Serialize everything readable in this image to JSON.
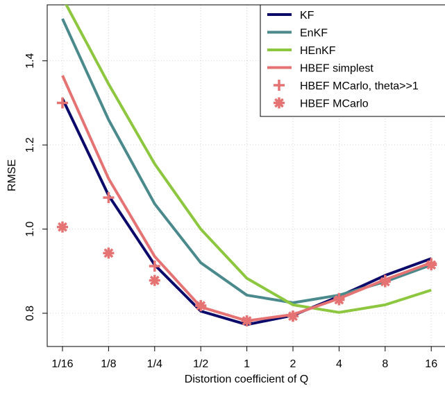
{
  "chart_data": {
    "type": "line",
    "x_label": "Distortion coefficient of Q",
    "y_label": "RMSE",
    "categories": [
      "1/16",
      "1/8",
      "1/4",
      "1/2",
      "1",
      "2",
      "4",
      "8",
      "16"
    ],
    "ylim": [
      0.721,
      1.533
    ],
    "yticks": [
      0.8,
      {
        "value": 1.0,
        "label": "1.0"
      },
      1.2,
      1.4
    ],
    "grid": true,
    "legend": "top right",
    "series": [
      {
        "name": "KF",
        "color": "#0b0a6b",
        "style": "line",
        "values": [
          1.31,
          1.08,
          0.915,
          0.805,
          0.773,
          0.795,
          0.84,
          0.89,
          0.93
        ]
      },
      {
        "name": "EnKF",
        "color": "#4b8a8c",
        "style": "line",
        "values": [
          1.5,
          1.26,
          1.06,
          0.92,
          0.843,
          0.825,
          0.843,
          0.875,
          0.915
        ]
      },
      {
        "name": "HEnKF",
        "color": "#8dc63f",
        "style": "line",
        "values": [
          1.55,
          1.345,
          1.155,
          1.0,
          0.883,
          0.82,
          0.802,
          0.82,
          0.855
        ]
      },
      {
        "name": "HBEF simplest",
        "color": "#e57373",
        "style": "line",
        "values": [
          1.365,
          1.12,
          0.935,
          0.815,
          0.782,
          0.797,
          0.835,
          0.88,
          0.92
        ]
      },
      {
        "name": "HBEF MCarlo, theta>>1",
        "color": "#e57373",
        "style": "plus",
        "values": [
          1.3,
          1.075,
          0.912,
          0.818,
          0.782,
          0.793,
          0.835,
          0.878,
          0.918
        ]
      },
      {
        "name": "HBEF MCarlo",
        "color": "#e57373",
        "style": "asterisk",
        "values": [
          1.005,
          0.943,
          0.878,
          0.818,
          0.782,
          0.793,
          0.832,
          0.875,
          0.915
        ]
      }
    ]
  }
}
